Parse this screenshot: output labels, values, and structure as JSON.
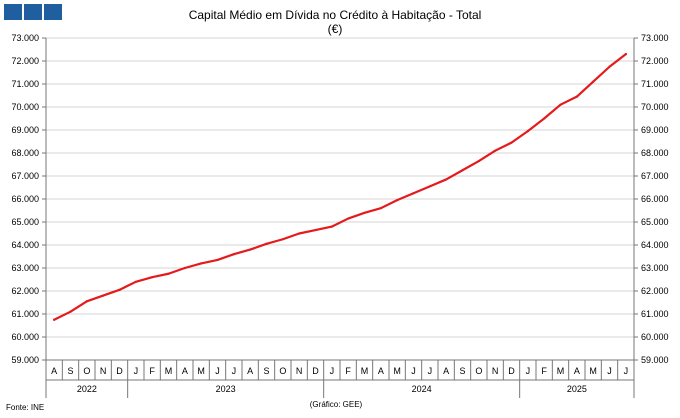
{
  "chart_data": {
    "type": "line",
    "title": "Capital Médio em Dívida no Crédito à Habitação - Total",
    "subtitle": "(€)",
    "source": "Fonte:  INE",
    "credit": "(Gráfico:  GEE)",
    "y_ticks": [
      "59.000",
      "60.000",
      "61.000",
      "62.000",
      "63.000",
      "64.000",
      "65.000",
      "66.000",
      "67.000",
      "68.000",
      "69.000",
      "70.000",
      "71.000",
      "72.000",
      "73.000"
    ],
    "ylim": [
      59000,
      73000
    ],
    "x_months": [
      "A",
      "S",
      "O",
      "N",
      "D",
      "J",
      "F",
      "M",
      "A",
      "M",
      "J",
      "J",
      "A",
      "S",
      "O",
      "N",
      "D",
      "J",
      "F",
      "M",
      "A",
      "M",
      "J",
      "J",
      "A",
      "S",
      "O",
      "N",
      "D",
      "J",
      "F",
      "M",
      "A",
      "M",
      "J",
      "J"
    ],
    "x_years": [
      {
        "label": "2022",
        "start": 0,
        "end": 5
      },
      {
        "label": "2023",
        "start": 5,
        "end": 17
      },
      {
        "label": "2024",
        "start": 17,
        "end": 29
      },
      {
        "label": "2025",
        "start": 29,
        "end": 36
      }
    ],
    "series": [
      {
        "color": "#e41a1c",
        "values": [
          60750,
          61100,
          61550,
          61800,
          62050,
          62400,
          62600,
          62750,
          63000,
          63200,
          63350,
          63600,
          63800,
          64050,
          64250,
          64500,
          64650,
          64800,
          65150,
          65400,
          65600,
          65950,
          66250,
          66550,
          66850,
          67250,
          67650,
          68100,
          68450,
          68950,
          69500,
          70100,
          70450,
          71100,
          71750,
          72300
        ]
      }
    ]
  }
}
